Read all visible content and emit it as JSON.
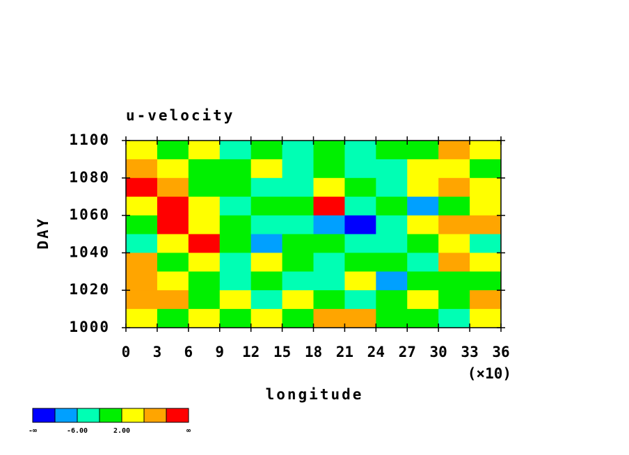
{
  "chart_data": {
    "type": "contour",
    "title": "u-velocity",
    "xlabel": "longitude",
    "ylabel": "DAY",
    "x_multiplier_label": "(×10)",
    "xlim": [
      0,
      36
    ],
    "xticks": [
      0,
      3,
      6,
      9,
      12,
      15,
      18,
      21,
      24,
      27,
      30,
      33,
      36
    ],
    "ylim": [
      1000,
      1100
    ],
    "yticks": [
      1000,
      1020,
      1040,
      1060,
      1080,
      1100
    ],
    "x": [
      1.5,
      4.5,
      7.5,
      10.5,
      13.5,
      16.5,
      19.5,
      22.5,
      25.5,
      28.5,
      31.5,
      34.5
    ],
    "y": [
      1095,
      1085,
      1075,
      1065,
      1055,
      1045,
      1035,
      1025,
      1015,
      1005
    ],
    "z": [
      [
        3,
        -1,
        4,
        -3,
        0,
        -4,
        -2,
        -5,
        -1,
        0,
        8,
        4
      ],
      [
        7,
        4,
        1,
        -2,
        3,
        -5,
        -1,
        -3,
        -6,
        2,
        5,
        1
      ],
      [
        11,
        6,
        -1,
        1,
        -4,
        -3,
        4,
        -2,
        -3,
        5,
        9,
        4
      ],
      [
        5,
        12,
        3,
        -3,
        0,
        -1,
        12,
        -4,
        -2,
        -8,
        0,
        3
      ],
      [
        -2,
        11,
        4,
        -1,
        -6,
        -4,
        -7,
        -11,
        -3,
        2,
        7,
        6
      ],
      [
        -4,
        3,
        13,
        1,
        -7,
        -2,
        1,
        -3,
        -5,
        -2,
        3,
        -4
      ],
      [
        8,
        1,
        4,
        -5,
        5,
        0,
        -4,
        -2,
        1,
        -3,
        9,
        2
      ],
      [
        6,
        2,
        1,
        -4,
        -2,
        -3,
        -6,
        2,
        -8,
        1,
        0,
        -2
      ],
      [
        8,
        6,
        0,
        4,
        -3,
        5,
        1,
        -4,
        0,
        4,
        -1,
        6
      ],
      [
        2,
        -1,
        4,
        1,
        3,
        0,
        6,
        7,
        -2,
        1,
        -4,
        3
      ]
    ],
    "colorbar": {
      "colors": [
        "#0000ff",
        "#00a0ff",
        "#00ffb4",
        "#00f000",
        "#ffff00",
        "#ffa500",
        "#ff0000"
      ],
      "bounds": [
        -10,
        -6,
        -2,
        2,
        6,
        10
      ],
      "ticks": [
        {
          "value": -6,
          "label": "-6.00"
        },
        {
          "value": 2,
          "label": "2.00"
        }
      ],
      "low_label": "-∞",
      "high_label": "∞"
    }
  }
}
